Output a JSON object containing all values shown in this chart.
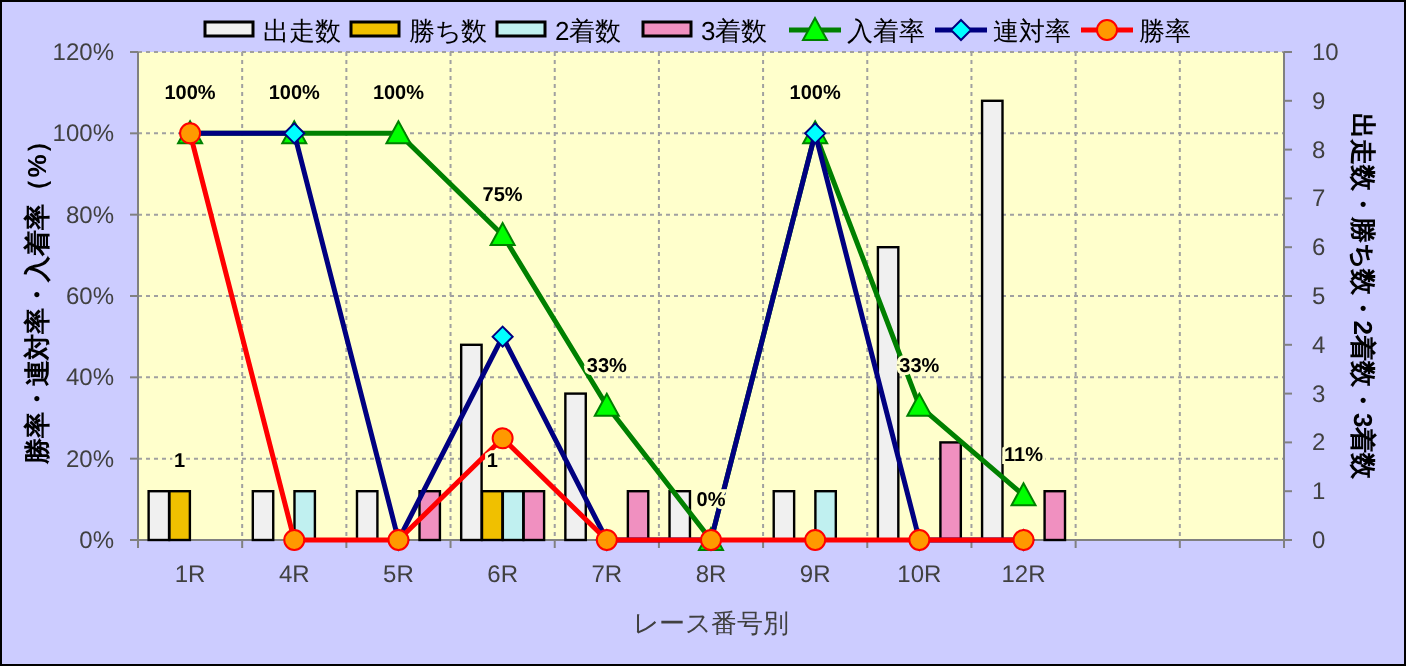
{
  "chart_data": {
    "type": "bar",
    "categories": [
      "1R",
      "4R",
      "5R",
      "6R",
      "7R",
      "8R",
      "9R",
      "10R",
      "12R",
      null,
      null
    ],
    "xlabel": "レース番号別",
    "ylabel": "勝率・連対率・入着率（%）",
    "y2label": "出走数・勝ち数・2着数・3着数",
    "ylim": [
      0,
      120
    ],
    "yticks": [
      {
        "value": 0,
        "label": "0%"
      },
      {
        "value": 20,
        "label": "20%"
      },
      {
        "value": 40,
        "label": "40%"
      },
      {
        "value": 60,
        "label": "60%"
      },
      {
        "value": 80,
        "label": "80%"
      },
      {
        "value": 100,
        "label": "100%"
      },
      {
        "value": 120,
        "label": "120%"
      }
    ],
    "y2lim": [
      0,
      10
    ],
    "y2ticks": [
      0,
      1,
      2,
      3,
      4,
      5,
      6,
      7,
      8,
      9,
      10
    ],
    "grid": true,
    "legend": "top",
    "series": [
      {
        "name": "出走数",
        "axis": "y2",
        "color": "#f0f0f0",
        "values": [
          1,
          1,
          1,
          4,
          3,
          1,
          1,
          6,
          9,
          null,
          null
        ]
      },
      {
        "name": "勝ち数",
        "axis": "y2",
        "color": "#f0c000",
        "values": [
          1,
          0,
          0,
          1,
          0,
          0,
          0,
          0,
          0,
          null,
          null
        ],
        "value_labels": [
          "1",
          null,
          null,
          "1",
          null,
          null,
          null,
          null,
          null,
          null,
          null
        ]
      },
      {
        "name": "2着数",
        "axis": "y2",
        "color": "#c0f0f0",
        "values": [
          0,
          1,
          0,
          1,
          0,
          0,
          1,
          0,
          0,
          null,
          null
        ]
      },
      {
        "name": "3着数",
        "axis": "y2",
        "color": "#f090c0",
        "values": [
          0,
          0,
          1,
          1,
          1,
          0,
          0,
          2,
          1,
          null,
          null
        ]
      },
      {
        "name": "入着率",
        "type": "line",
        "axis": "y",
        "color": "#008000",
        "marker": "triangle",
        "values": [
          100,
          100,
          100,
          75,
          33,
          0,
          100,
          33,
          11,
          null,
          null
        ],
        "value_labels": [
          "100%",
          "100%",
          "100%",
          "75%",
          "33%",
          "0%",
          "100%",
          "33%",
          "11%",
          null,
          null
        ]
      },
      {
        "name": "連対率",
        "type": "line",
        "axis": "y",
        "color": "#000080",
        "marker": "diamond",
        "values": [
          100,
          100,
          0,
          50,
          0,
          0,
          100,
          0,
          0,
          null,
          null
        ]
      },
      {
        "name": "勝率",
        "type": "line",
        "axis": "y",
        "color": "#ff0000",
        "marker": "circle",
        "values": [
          100,
          0,
          0,
          25,
          0,
          0,
          0,
          0,
          0,
          null,
          null
        ]
      }
    ]
  }
}
